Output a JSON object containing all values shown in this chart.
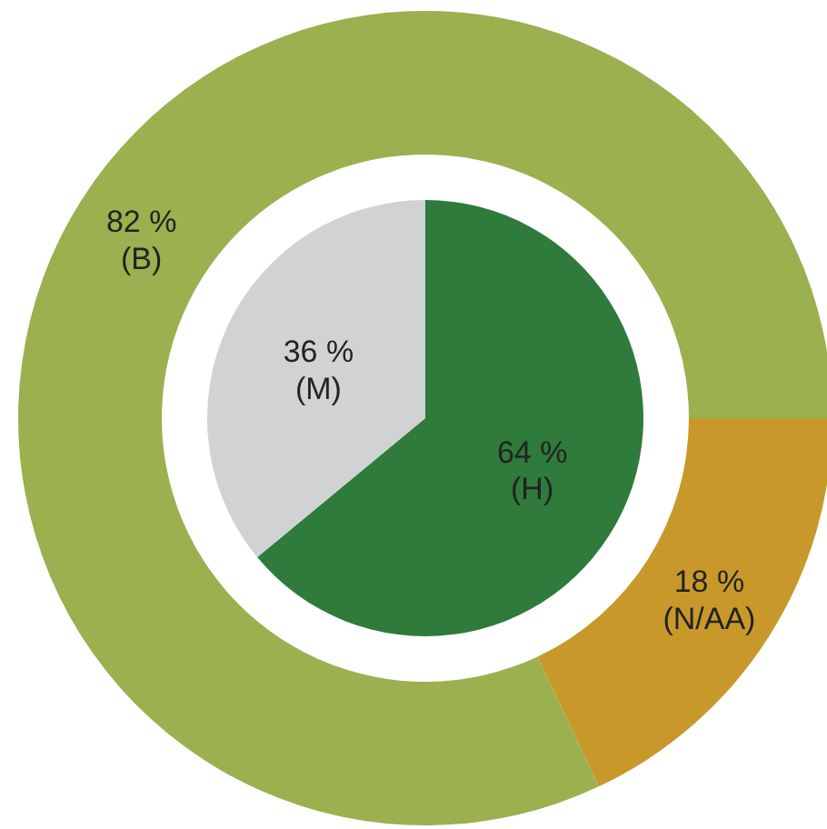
{
  "chart_data": [
    {
      "type": "donut",
      "categories": [
        "(N/AA)",
        "(B)"
      ],
      "values": [
        18,
        82
      ],
      "colors": [
        "#c8992a",
        "#9bb04f"
      ],
      "value_labels": [
        "18 %",
        "82 %"
      ]
    },
    {
      "type": "pie",
      "categories": [
        "(H)",
        "(M)"
      ],
      "values": [
        64,
        36
      ],
      "colors": [
        "#2e7b3b",
        "#d1d2d4"
      ],
      "value_labels": [
        "64 %",
        "36 %"
      ]
    }
  ]
}
